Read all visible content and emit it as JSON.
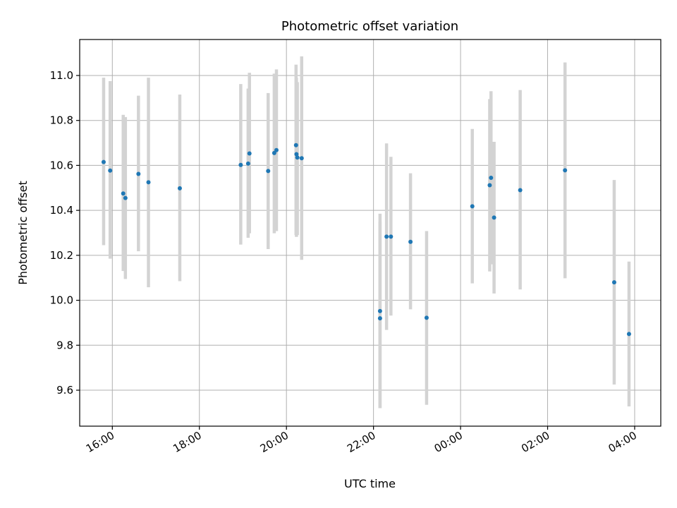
{
  "chart_data": {
    "type": "scatter",
    "title": "Photometric offset variation",
    "xlabel": "UTC time",
    "ylabel": "Photometric offset",
    "x_unit": "hours since 00:00 on the first night (values above 24 are the next day)",
    "xlim": [
      15.25,
      28.6
    ],
    "ylim": [
      9.44,
      11.16
    ],
    "grid": true,
    "x_ticks": [
      {
        "value": 16,
        "label": "16:00"
      },
      {
        "value": 18,
        "label": "18:00"
      },
      {
        "value": 20,
        "label": "20:00"
      },
      {
        "value": 22,
        "label": "22:00"
      },
      {
        "value": 24,
        "label": "00:00"
      },
      {
        "value": 26,
        "label": "02:00"
      },
      {
        "value": 28,
        "label": "04:00"
      }
    ],
    "y_ticks": [
      {
        "value": 9.6,
        "label": "9.6"
      },
      {
        "value": 9.8,
        "label": "9.8"
      },
      {
        "value": 10.0,
        "label": "10.0"
      },
      {
        "value": 10.2,
        "label": "10.2"
      },
      {
        "value": 10.4,
        "label": "10.4"
      },
      {
        "value": 10.6,
        "label": "10.6"
      },
      {
        "value": 10.8,
        "label": "10.8"
      },
      {
        "value": 11.0,
        "label": "11.0"
      }
    ],
    "marker_color": "#1f77b4",
    "errorbar_color": "#d3d3d3",
    "series": [
      {
        "name": "Photometric offset",
        "points": [
          {
            "x": 15.8,
            "y": 10.615,
            "ylo": 10.245,
            "yhi": 10.99
          },
          {
            "x": 15.95,
            "y": 10.577,
            "ylo": 10.185,
            "yhi": 10.975
          },
          {
            "x": 16.25,
            "y": 10.475,
            "ylo": 10.13,
            "yhi": 10.825
          },
          {
            "x": 16.3,
            "y": 10.455,
            "ylo": 10.095,
            "yhi": 10.815
          },
          {
            "x": 16.6,
            "y": 10.562,
            "ylo": 10.218,
            "yhi": 10.91
          },
          {
            "x": 16.83,
            "y": 10.525,
            "ylo": 10.058,
            "yhi": 10.99
          },
          {
            "x": 17.55,
            "y": 10.498,
            "ylo": 10.085,
            "yhi": 10.915
          },
          {
            "x": 18.95,
            "y": 10.602,
            "ylo": 10.248,
            "yhi": 10.962
          },
          {
            "x": 19.12,
            "y": 10.608,
            "ylo": 10.278,
            "yhi": 10.942
          },
          {
            "x": 19.15,
            "y": 10.653,
            "ylo": 10.298,
            "yhi": 11.012
          },
          {
            "x": 19.58,
            "y": 10.575,
            "ylo": 10.228,
            "yhi": 10.922
          },
          {
            "x": 19.72,
            "y": 10.655,
            "ylo": 10.298,
            "yhi": 11.008
          },
          {
            "x": 19.77,
            "y": 10.668,
            "ylo": 10.308,
            "yhi": 11.027
          },
          {
            "x": 20.22,
            "y": 10.69,
            "ylo": 10.29,
            "yhi": 11.048
          },
          {
            "x": 20.23,
            "y": 10.65,
            "ylo": 10.282,
            "yhi": 10.99
          },
          {
            "x": 20.25,
            "y": 10.635,
            "ylo": 10.29,
            "yhi": 10.97
          },
          {
            "x": 20.35,
            "y": 10.632,
            "ylo": 10.18,
            "yhi": 11.085
          },
          {
            "x": 22.15,
            "y": 9.952,
            "ylo": 9.52,
            "yhi": 10.385
          },
          {
            "x": 22.15,
            "y": 9.92,
            "ylo": 9.52,
            "yhi": 10.35
          },
          {
            "x": 22.3,
            "y": 10.283,
            "ylo": 9.868,
            "yhi": 10.698
          },
          {
            "x": 22.4,
            "y": 10.283,
            "ylo": 9.932,
            "yhi": 10.638
          },
          {
            "x": 22.85,
            "y": 10.26,
            "ylo": 9.96,
            "yhi": 10.565
          },
          {
            "x": 23.22,
            "y": 9.922,
            "ylo": 9.535,
            "yhi": 10.308
          },
          {
            "x": 24.27,
            "y": 10.418,
            "ylo": 10.075,
            "yhi": 10.762
          },
          {
            "x": 24.67,
            "y": 10.512,
            "ylo": 10.128,
            "yhi": 10.895
          },
          {
            "x": 24.7,
            "y": 10.545,
            "ylo": 10.16,
            "yhi": 10.93
          },
          {
            "x": 24.77,
            "y": 10.368,
            "ylo": 10.03,
            "yhi": 10.705
          },
          {
            "x": 25.37,
            "y": 10.49,
            "ylo": 10.048,
            "yhi": 10.935
          },
          {
            "x": 26.4,
            "y": 10.578,
            "ylo": 10.098,
            "yhi": 11.058
          },
          {
            "x": 27.53,
            "y": 10.08,
            "ylo": 9.625,
            "yhi": 10.535
          },
          {
            "x": 27.87,
            "y": 9.85,
            "ylo": 9.528,
            "yhi": 10.172
          }
        ]
      }
    ]
  }
}
